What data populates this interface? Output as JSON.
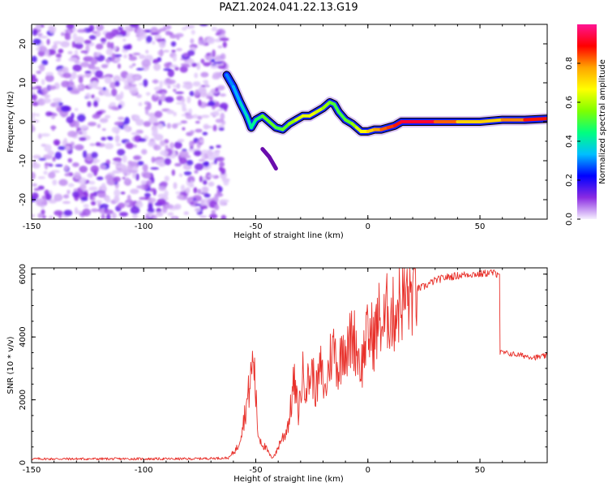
{
  "title": "PAZ1.2024.041.22.13.G19",
  "chart_data": [
    {
      "type": "heatmap",
      "xlabel": "Height of straight line (km)",
      "ylabel": "Frequency (Hz)",
      "xlim": [
        -150,
        80
      ],
      "ylim": [
        -25,
        25
      ],
      "xticks": [
        -150,
        -100,
        -50,
        0,
        50
      ],
      "yticks": [
        -20,
        -10,
        0,
        10,
        20
      ],
      "grid": false,
      "noise_region_x": [
        -150,
        -63
      ],
      "ridge": {
        "x": [
          -63,
          -60,
          -57,
          -54,
          -52,
          -50,
          -47,
          -44,
          -41,
          -38,
          -35,
          -32,
          -29,
          -26,
          -23,
          -20,
          -17,
          -15,
          -13,
          -10,
          -7,
          -5,
          -3,
          0,
          3,
          6,
          9,
          12,
          15,
          20,
          30,
          40,
          50,
          60,
          70,
          80
        ],
        "y": [
          12,
          9,
          5,
          1.5,
          -1.5,
          0.5,
          1.5,
          0,
          -1.5,
          -2,
          -0.5,
          0.5,
          1.5,
          1.5,
          2.5,
          3.5,
          5,
          4.5,
          2.5,
          0.5,
          -0.5,
          -1.5,
          -2.5,
          -2.5,
          -2,
          -2,
          -1.5,
          -1,
          0,
          0,
          0,
          0,
          0,
          0.5,
          0.5,
          0.8
        ],
        "amplitude": [
          0.3,
          0.3,
          0.35,
          0.4,
          0.4,
          0.45,
          0.5,
          0.55,
          0.5,
          0.5,
          0.55,
          0.6,
          0.65,
          0.65,
          0.65,
          0.6,
          0.55,
          0.5,
          0.5,
          0.5,
          0.55,
          0.6,
          0.65,
          0.7,
          0.75,
          0.8,
          0.85,
          0.85,
          0.9,
          0.95,
          0.9,
          0.75,
          0.7,
          0.75,
          0.85,
          0.9
        ]
      },
      "spur": {
        "x": [
          -47,
          -44,
          -41
        ],
        "y": [
          -7,
          -9,
          -12
        ]
      },
      "colorbar": {
        "label": "Normalized spectral amplitude",
        "ticks": [
          0.0,
          0.2,
          0.4,
          0.6,
          0.8
        ],
        "range": [
          0,
          1
        ],
        "colors": [
          "#f6f0ff",
          "#8a2be2",
          "#0000ff",
          "#00bfff",
          "#00ff7f",
          "#7fff00",
          "#ffff00",
          "#ffa500",
          "#ff0000",
          "#ff1493"
        ]
      }
    },
    {
      "type": "line",
      "xlabel": "Height of straight line (km)",
      "ylabel": "SNR (10 * v/v)",
      "xlim": [
        -150,
        80
      ],
      "ylim": [
        0,
        6200
      ],
      "xticks": [
        -150,
        -100,
        -50,
        0,
        50
      ],
      "yticks": [
        0,
        2000,
        4000,
        6000
      ],
      "grid": false,
      "color": "#e8302a",
      "series": [
        {
          "x": [
            -150,
            -120,
            -100,
            -80,
            -62,
            -58,
            -55,
            -53,
            -51,
            -49,
            -47,
            -45,
            -43,
            -41,
            -39,
            -37,
            -35,
            -33,
            -31,
            -29,
            -27,
            -25,
            -23,
            -21,
            -19,
            -17,
            -15,
            -13,
            -11,
            -9,
            -7,
            -5,
            -3,
            -1,
            1,
            3,
            5,
            7,
            9,
            11,
            13,
            15,
            18,
            21,
            25,
            30,
            35,
            40,
            45,
            50,
            55,
            58,
            59,
            60,
            65,
            70,
            75,
            80
          ],
          "y": [
            120,
            120,
            120,
            120,
            150,
            500,
            1500,
            2300,
            3400,
            900,
            600,
            400,
            150,
            300,
            700,
            900,
            1400,
            2600,
            1600,
            2800,
            2500,
            2900,
            2300,
            3000,
            2200,
            3300,
            3700,
            2900,
            3900,
            3500,
            4100,
            3700,
            3000,
            3900,
            4100,
            4000,
            4600,
            4300,
            4900,
            4600,
            5000,
            5200,
            5300,
            5500,
            5600,
            5800,
            5900,
            5950,
            6000,
            6000,
            6050,
            6000,
            3500,
            3500,
            3450,
            3400,
            3350,
            3400
          ]
        }
      ]
    }
  ]
}
